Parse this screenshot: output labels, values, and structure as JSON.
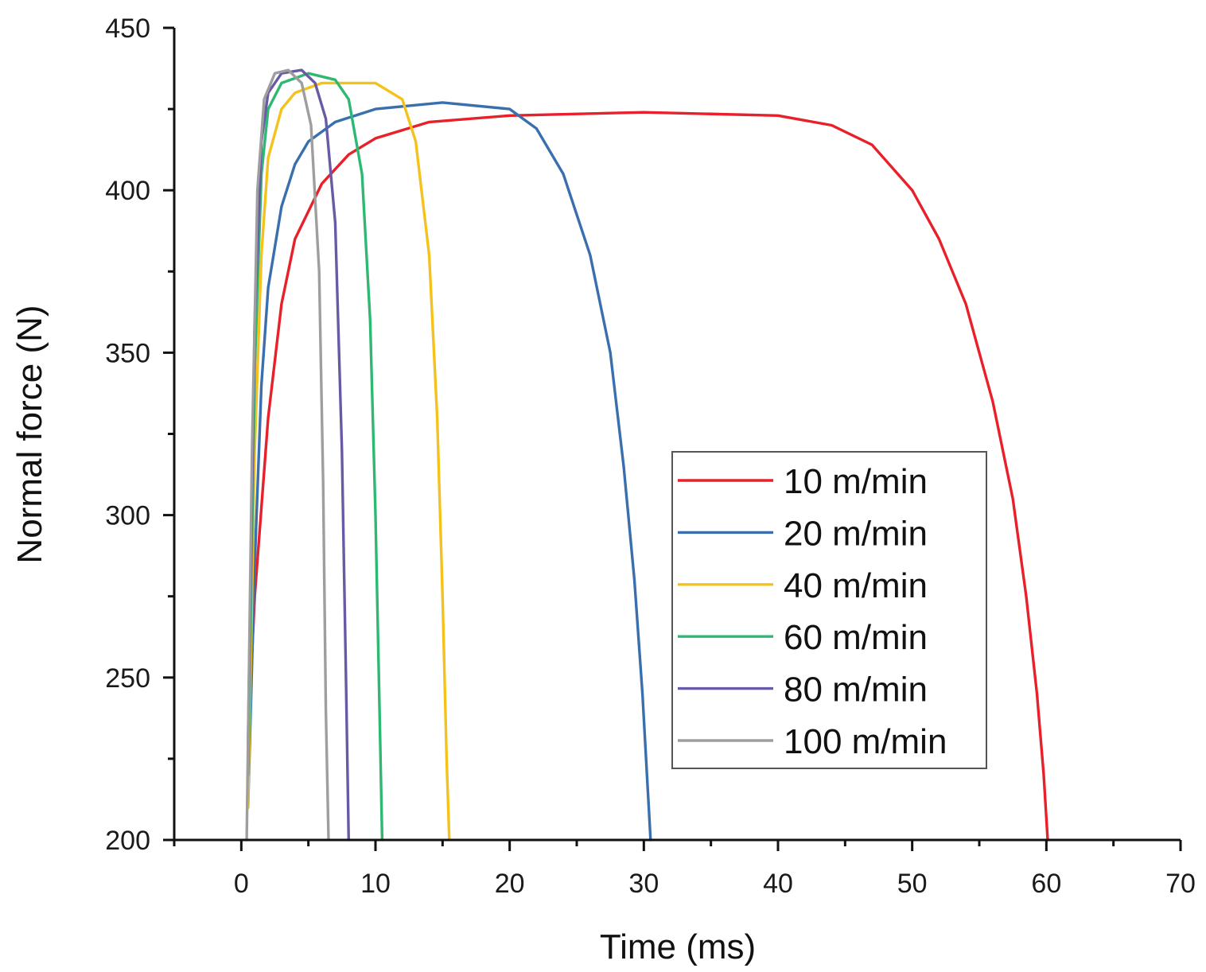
{
  "chart_data": {
    "type": "line",
    "title": "",
    "xlabel": "Time (ms)",
    "ylabel": "Normal force (N)",
    "xlim": [
      -5,
      70
    ],
    "ylim": [
      200,
      450
    ],
    "xticks": [
      0,
      10,
      20,
      30,
      40,
      50,
      60,
      70
    ],
    "yticks": [
      200,
      250,
      300,
      350,
      400,
      450
    ],
    "xtick_labels": [
      "0",
      "10",
      "20",
      "30",
      "40",
      "50",
      "60",
      "70"
    ],
    "ytick_labels": [
      "200",
      "250",
      "300",
      "350",
      "400",
      "450"
    ],
    "grid": false,
    "legend_position": "center-right",
    "series": [
      {
        "name": "10 m/min",
        "color": "#e8202a",
        "x": [
          0.6,
          1.0,
          2.0,
          3.0,
          4.0,
          6.0,
          8.0,
          10.0,
          14.0,
          20.0,
          30.0,
          40.0,
          44.0,
          47.0,
          50.0,
          52.0,
          54.0,
          56.0,
          57.5,
          58.5,
          59.3,
          59.8,
          60.1
        ],
        "y": [
          240,
          275,
          330,
          365,
          385,
          402,
          411,
          416,
          421,
          423,
          424,
          423,
          420,
          414,
          400,
          385,
          365,
          335,
          305,
          275,
          245,
          220,
          200
        ]
      },
      {
        "name": "20 m/min",
        "color": "#3a6fae",
        "x": [
          0.5,
          1.0,
          1.5,
          2.0,
          3.0,
          4.0,
          5.0,
          7.0,
          10.0,
          15.0,
          20.0,
          22.0,
          24.0,
          26.0,
          27.5,
          28.5,
          29.3,
          29.9,
          30.3,
          30.5
        ],
        "y": [
          210,
          285,
          340,
          370,
          395,
          408,
          415,
          421,
          425,
          427,
          425,
          419,
          405,
          380,
          350,
          315,
          280,
          245,
          215,
          200
        ]
      },
      {
        "name": "40 m/min",
        "color": "#f5c21b",
        "x": [
          0.5,
          1.0,
          1.5,
          2.0,
          3.0,
          4.0,
          6.0,
          10.0,
          12.0,
          13.0,
          14.0,
          14.6,
          15.0,
          15.3,
          15.5
        ],
        "y": [
          210,
          320,
          380,
          410,
          425,
          430,
          433,
          433,
          428,
          415,
          380,
          330,
          275,
          225,
          200
        ]
      },
      {
        "name": "60 m/min",
        "color": "#2eb872",
        "x": [
          0.5,
          1.0,
          1.5,
          2.0,
          3.0,
          5.0,
          7.0,
          8.0,
          9.0,
          9.6,
          10.0,
          10.3,
          10.5
        ],
        "y": [
          220,
          345,
          405,
          425,
          433,
          436,
          434,
          428,
          405,
          360,
          300,
          240,
          200
        ]
      },
      {
        "name": "80 m/min",
        "color": "#6a5aa6",
        "x": [
          0.5,
          1.0,
          1.5,
          2.0,
          3.0,
          4.5,
          5.5,
          6.3,
          7.0,
          7.5,
          7.8,
          8.0
        ],
        "y": [
          230,
          360,
          415,
          430,
          436,
          437,
          433,
          422,
          390,
          320,
          250,
          200
        ]
      },
      {
        "name": "100 m/min",
        "color": "#9e9e9e",
        "x": [
          0.4,
          0.8,
          1.2,
          1.7,
          2.5,
          3.5,
          4.5,
          5.2,
          5.8,
          6.1,
          6.3,
          6.5
        ],
        "y": [
          200,
          320,
          400,
          428,
          436,
          437,
          433,
          420,
          375,
          310,
          240,
          200
        ]
      }
    ]
  }
}
